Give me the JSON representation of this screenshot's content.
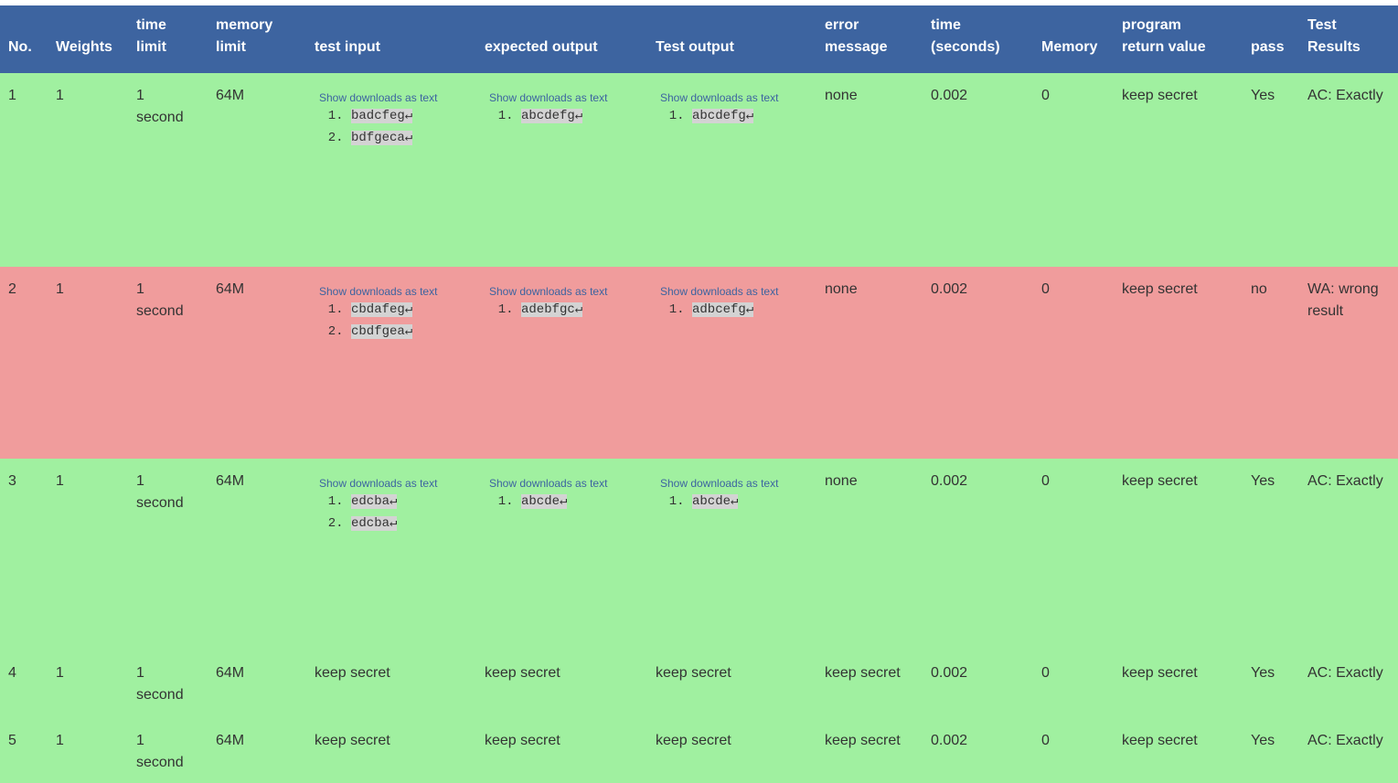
{
  "table": {
    "header_color": "#3d64a0",
    "header": [
      [
        "No."
      ],
      [
        "Weights"
      ],
      [
        "time",
        "limit"
      ],
      [
        "memory",
        "limit"
      ],
      [
        "test input"
      ],
      [
        "expected output"
      ],
      [
        "Test output"
      ],
      [
        "error",
        "message"
      ],
      [
        "time",
        "(seconds)"
      ],
      [
        "Memory"
      ],
      [
        "program",
        "return value"
      ],
      [
        "pass"
      ],
      [
        "Test",
        "Results"
      ]
    ],
    "rows": [
      {
        "color": "#a0f0a0",
        "cells": [
          "1",
          "1",
          [
            "1",
            "second"
          ],
          "64M",
          {
            "link": "Show downloads as text",
            "items": [
              "badcfeg↵",
              "bdfgeca↵"
            ]
          },
          {
            "link": "Show downloads as text",
            "items": [
              "abcdefg↵"
            ]
          },
          {
            "link": "Show downloads as text",
            "items": [
              "abcdefg↵"
            ]
          },
          "none",
          "0.002",
          "0",
          "keep secret",
          "Yes",
          [
            "AC: Exactly"
          ]
        ]
      },
      {
        "color": "#f09c9c",
        "cells": [
          "2",
          "1",
          [
            "1",
            "second"
          ],
          "64M",
          {
            "link": "Show downloads as text",
            "items": [
              "cbdafeg↵",
              "cbdfgea↵"
            ]
          },
          {
            "link": "Show downloads as text",
            "items": [
              "adebfgc↵"
            ]
          },
          {
            "link": "Show downloads as text",
            "items": [
              "adbcefg↵"
            ]
          },
          "none",
          "0.002",
          "0",
          "keep secret",
          "no",
          [
            "WA: wrong",
            "result"
          ]
        ]
      },
      {
        "color": "#a0f0a0",
        "cells": [
          "3",
          "1",
          [
            "1",
            "second"
          ],
          "64M",
          {
            "link": "Show downloads as text",
            "items": [
              "edcba↵",
              "edcba↵"
            ]
          },
          {
            "link": "Show downloads as text",
            "items": [
              "abcde↵"
            ]
          },
          {
            "link": "Show downloads as text",
            "items": [
              "abcde↵"
            ]
          },
          "none",
          "0.002",
          "0",
          "keep secret",
          "Yes",
          [
            "AC: Exactly"
          ]
        ]
      },
      {
        "color": "#a0f0a0",
        "cells": [
          "4",
          "1",
          [
            "1",
            "second"
          ],
          "64M",
          "keep secret",
          "keep secret",
          "keep secret",
          "keep secret",
          "0.002",
          "0",
          "keep secret",
          "Yes",
          [
            "AC: Exactly"
          ]
        ]
      },
      {
        "color": "#a0f0a0",
        "cells": [
          "5",
          "1",
          [
            "1",
            "second"
          ],
          "64M",
          "keep secret",
          "keep secret",
          "keep secret",
          "keep secret",
          "0.002",
          "0",
          "keep secret",
          "Yes",
          [
            "AC: Exactly"
          ]
        ]
      }
    ]
  }
}
